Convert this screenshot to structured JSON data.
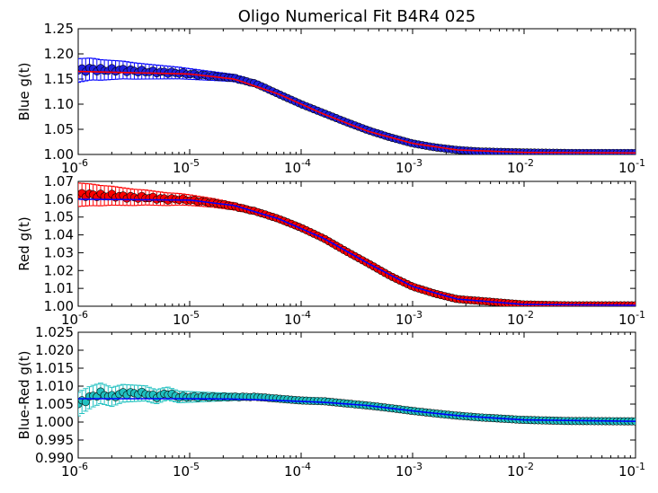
{
  "chart_data": [
    {
      "type": "scatter",
      "title": "Oligo Numerical Fit B4R4 025",
      "ylabel": "Blue g(t)",
      "xscale": "log",
      "xlim": [
        1e-06,
        0.1
      ],
      "ylim": [
        1.0,
        1.25
      ],
      "x_tick_labels": [
        "10^-6",
        "10^-5",
        "10^-4",
        "10^-3",
        "10^-2",
        "10^-1"
      ],
      "y_tick_labels": [
        "1.00",
        "1.05",
        "1.10",
        "1.15",
        "1.20",
        "1.25"
      ],
      "marker_color": "#1f1fe0",
      "errorbar_color": "#0000ff",
      "fit_color": "#ff0000",
      "series": [
        {
          "kind": "data-with-errorbars",
          "points": [
            [
              1e-06,
              1.167
            ],
            [
              1.3e-06,
              1.17
            ],
            [
              1.6e-06,
              1.168
            ],
            [
              2e-06,
              1.168
            ],
            [
              2.5e-06,
              1.168
            ],
            [
              3.2e-06,
              1.166
            ],
            [
              4e-06,
              1.165
            ],
            [
              5e-06,
              1.164
            ],
            [
              6.3e-06,
              1.163
            ],
            [
              8e-06,
              1.162
            ],
            [
              1e-05,
              1.16
            ],
            [
              1.6e-05,
              1.156
            ],
            [
              2.5e-05,
              1.152
            ],
            [
              4e-05,
              1.14
            ],
            [
              6.3e-05,
              1.12
            ],
            [
              0.0001,
              1.1
            ],
            [
              0.00016,
              1.082
            ],
            [
              0.00025,
              1.065
            ],
            [
              0.0004,
              1.048
            ],
            [
              0.00063,
              1.034
            ],
            [
              0.001,
              1.022
            ],
            [
              0.0016,
              1.014
            ],
            [
              0.0025,
              1.009
            ],
            [
              0.004,
              1.006
            ],
            [
              0.01,
              1.004
            ],
            [
              0.025,
              1.003
            ],
            [
              0.1,
              1.003
            ]
          ]
        },
        {
          "kind": "fit-line",
          "points": [
            [
              1e-06,
              1.165
            ],
            [
              1e-05,
              1.16
            ],
            [
              2.5e-05,
              1.15
            ],
            [
              6.3e-05,
              1.12
            ],
            [
              0.00016,
              1.08
            ],
            [
              0.0004,
              1.046
            ],
            [
              0.001,
              1.022
            ],
            [
              0.0025,
              1.009
            ],
            [
              0.01,
              1.004
            ],
            [
              0.1,
              1.003
            ]
          ]
        }
      ]
    },
    {
      "type": "scatter",
      "ylabel": "Red g(t)",
      "xscale": "log",
      "xlim": [
        1e-06,
        0.1
      ],
      "ylim": [
        1.0,
        1.07
      ],
      "x_tick_labels": [
        "10^-6",
        "10^-5",
        "10^-4",
        "10^-3",
        "10^-2",
        "10^-1"
      ],
      "y_tick_labels": [
        "1.00",
        "1.01",
        "1.02",
        "1.03",
        "1.04",
        "1.05",
        "1.06",
        "1.07"
      ],
      "marker_color": "#ff0000",
      "errorbar_color": "#ff0000",
      "fit_color": "#0000ff",
      "series": [
        {
          "kind": "data-with-errorbars",
          "points": [
            [
              1e-06,
              1.0625
            ],
            [
              1.3e-06,
              1.0625
            ],
            [
              1.6e-06,
              1.062
            ],
            [
              2e-06,
              1.062
            ],
            [
              2.5e-06,
              1.0615
            ],
            [
              3.2e-06,
              1.061
            ],
            [
              4e-06,
              1.061
            ],
            [
              5e-06,
              1.0605
            ],
            [
              6.3e-06,
              1.06
            ],
            [
              8e-06,
              1.06
            ],
            [
              1e-05,
              1.0595
            ],
            [
              1.6e-05,
              1.058
            ],
            [
              2.5e-05,
              1.056
            ],
            [
              4e-05,
              1.053
            ],
            [
              6.3e-05,
              1.049
            ],
            [
              0.0001,
              1.044
            ],
            [
              0.00016,
              1.038
            ],
            [
              0.00025,
              1.031
            ],
            [
              0.0004,
              1.024
            ],
            [
              0.00063,
              1.017
            ],
            [
              0.001,
              1.011
            ],
            [
              0.0016,
              1.007
            ],
            [
              0.0025,
              1.004
            ],
            [
              0.004,
              1.003
            ],
            [
              0.01,
              1.001
            ],
            [
              0.025,
              1.0005
            ],
            [
              0.1,
              1.0005
            ]
          ]
        },
        {
          "kind": "fit-line",
          "points": [
            [
              1e-06,
              1.06
            ],
            [
              1e-05,
              1.0595
            ],
            [
              2.5e-05,
              1.0565
            ],
            [
              6.3e-05,
              1.049
            ],
            [
              0.00016,
              1.038
            ],
            [
              0.0004,
              1.024
            ],
            [
              0.001,
              1.011
            ],
            [
              0.0025,
              1.004
            ],
            [
              0.01,
              1.001
            ],
            [
              0.1,
              1.0005
            ]
          ]
        }
      ]
    },
    {
      "type": "scatter",
      "ylabel": "Blue-Red g(t)",
      "xscale": "log",
      "xlim": [
        1e-06,
        0.1
      ],
      "ylim": [
        0.99,
        1.025
      ],
      "x_tick_labels": [
        "10^-6",
        "10^-5",
        "10^-4",
        "10^-3",
        "10^-2",
        "10^-1"
      ],
      "y_tick_labels": [
        "0.990",
        "0.995",
        "1.000",
        "1.005",
        "1.010",
        "1.015",
        "1.020",
        "1.025"
      ],
      "marker_color": "#20c0c0",
      "errorbar_color": "#20c0c0",
      "fit_color": "#0000ff",
      "series": [
        {
          "kind": "data-with-errorbars",
          "points": [
            [
              1e-06,
              1.005
            ],
            [
              1.3e-06,
              1.007
            ],
            [
              1.6e-06,
              1.008
            ],
            [
              2e-06,
              1.007
            ],
            [
              2.5e-06,
              1.008
            ],
            [
              3.2e-06,
              1.008
            ],
            [
              4e-06,
              1.008
            ],
            [
              5e-06,
              1.007
            ],
            [
              6.3e-06,
              1.008
            ],
            [
              8e-06,
              1.007
            ],
            [
              1e-05,
              1.007
            ],
            [
              1.6e-05,
              1.007
            ],
            [
              2.5e-05,
              1.007
            ],
            [
              4e-05,
              1.007
            ],
            [
              6.3e-05,
              1.0065
            ],
            [
              0.0001,
              1.006
            ],
            [
              0.00016,
              1.0058
            ],
            [
              0.00025,
              1.0052
            ],
            [
              0.0004,
              1.0046
            ],
            [
              0.00063,
              1.0039
            ],
            [
              0.001,
              1.0031
            ],
            [
              0.0016,
              1.0024
            ],
            [
              0.0025,
              1.0018
            ],
            [
              0.004,
              1.0013
            ],
            [
              0.01,
              1.0006
            ],
            [
              0.025,
              1.0003
            ],
            [
              0.1,
              1.0002
            ]
          ]
        },
        {
          "kind": "fit-line",
          "points": [
            [
              1e-06,
              1.0065
            ],
            [
              1e-05,
              1.0065
            ],
            [
              2.5e-05,
              1.0064
            ],
            [
              6.3e-05,
              1.006
            ],
            [
              0.00016,
              1.0055
            ],
            [
              0.0004,
              1.0046
            ],
            [
              0.001,
              1.0031
            ],
            [
              0.0025,
              1.0018
            ],
            [
              0.01,
              1.0006
            ],
            [
              0.1,
              1.0002
            ]
          ]
        }
      ]
    }
  ]
}
